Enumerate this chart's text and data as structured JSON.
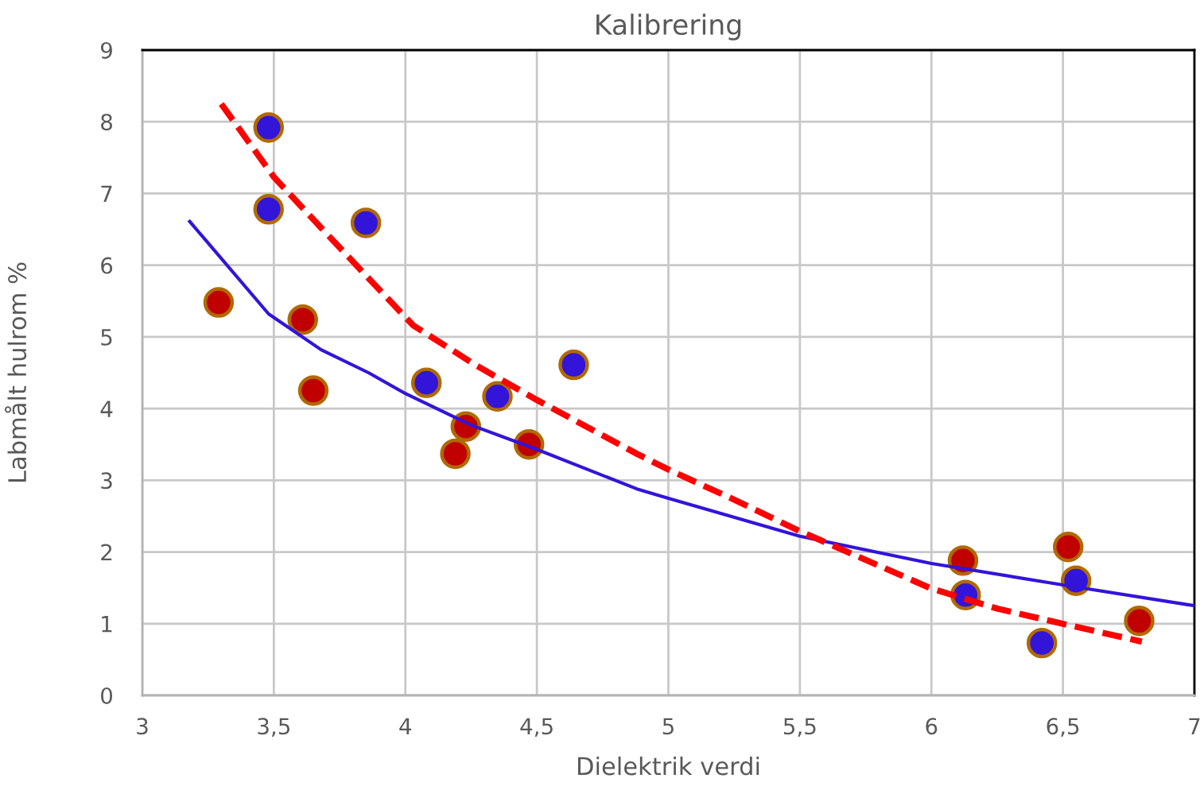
{
  "chart_data": {
    "type": "scatter",
    "title": "Kalibrering",
    "xlabel": "Dielektrik verdi",
    "ylabel": "Labmålt hulrom %",
    "xlim": [
      3,
      7
    ],
    "ylim": [
      0,
      9
    ],
    "xticks": [
      3,
      {
        "value": 3.5,
        "label": "3,5"
      },
      4,
      {
        "value": 4.5,
        "label": "4,5"
      },
      5,
      {
        "value": 5.5,
        "label": "5,5"
      },
      6,
      {
        "value": 6.5,
        "label": "6,5"
      },
      7
    ],
    "yticks": [
      0,
      1,
      2,
      3,
      4,
      5,
      6,
      7,
      8,
      9
    ],
    "grid": true,
    "marker": "circle",
    "series": [
      {
        "color": "#3314d9",
        "x": [
          3.48,
          3.48,
          3.85,
          4.08,
          4.35,
          4.64,
          6.13,
          6.42,
          6.55
        ],
        "values": [
          7.92,
          6.78,
          6.59,
          4.36,
          4.17,
          4.61,
          1.4,
          0.73,
          1.6
        ]
      },
      {
        "color": "#c00000",
        "x": [
          3.29,
          3.61,
          3.65,
          4.23,
          4.19,
          4.47,
          6.12,
          6.52,
          6.79
        ],
        "values": [
          5.48,
          5.24,
          4.25,
          3.75,
          3.37,
          3.5,
          1.88,
          2.07,
          1.04
        ]
      },
      {
        "type": "line",
        "marker": "none",
        "line_style": "solid",
        "color": "#3314d9",
        "x": [
          3.18,
          3.48,
          3.68,
          3.86,
          4.0,
          4.25,
          4.5,
          4.88,
          5.0,
          5.5,
          6.0,
          6.5,
          7.0
        ],
        "values": [
          6.61,
          5.32,
          4.82,
          4.5,
          4.21,
          3.77,
          3.43,
          2.88,
          2.75,
          2.22,
          1.84,
          1.54,
          1.25
        ]
      },
      {
        "type": "line",
        "marker": "none",
        "line_style": "dashed",
        "color": "#ff0000",
        "x": [
          3.3,
          3.5,
          3.68,
          3.88,
          4.03,
          4.27,
          4.5,
          4.88,
          5.0,
          5.25,
          5.5,
          5.75,
          6.0,
          6.25,
          6.51,
          6.8
        ],
        "values": [
          8.25,
          7.23,
          6.52,
          5.74,
          5.16,
          4.6,
          4.12,
          3.37,
          3.15,
          2.73,
          2.29,
          1.89,
          1.49,
          1.21,
          0.99,
          0.75
        ]
      }
    ]
  }
}
